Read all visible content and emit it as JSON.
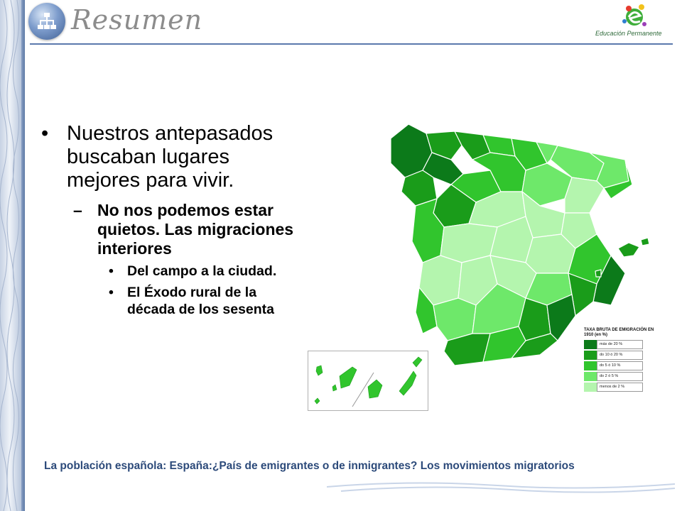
{
  "header": {
    "title": "Resumen",
    "brand_name": "Educación Permanente"
  },
  "bullets": {
    "level1": "Nuestros antepasados buscaban lugares mejores para vivir.",
    "level2": "No nos podemos estar quietos. Las migraciones interiores",
    "level3": [
      "Del campo a la ciudad.",
      "El Éxodo rural de la década de los sesenta"
    ],
    "marker1": "•",
    "marker2": "–",
    "marker3": "•"
  },
  "map_legend": {
    "title": "TAXA BRUTA DE EMIGRACIÓN EN 1910 (en %)",
    "items": [
      {
        "label": "más de 20 %",
        "color": "#0c7a1a"
      },
      {
        "label": "do 10 ó 20 %",
        "color": "#1a9c1a"
      },
      {
        "label": "do 5 ó 10 %",
        "color": "#31c52d"
      },
      {
        "label": "do 2 ó 5 %",
        "color": "#6ee86a"
      },
      {
        "label": "menos de 2 %",
        "color": "#b4f5ae"
      }
    ]
  },
  "footer": {
    "text": "La población española: España:¿País de emigrantes o de inmigrantes? Los movimientos migratorios"
  },
  "colors": {
    "accent": "#5b79ad",
    "footer_text": "#2c4a7a"
  }
}
